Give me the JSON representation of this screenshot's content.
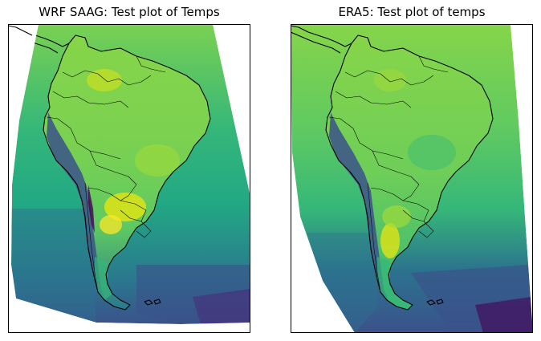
{
  "panels": [
    {
      "title": "WRF SAAG: Test plot of Temps",
      "colormap": "viridis",
      "colors": {
        "warm": "#d8e219",
        "mid_high": "#7ad151",
        "mid": "#22a884",
        "mid_low": "#2a788e",
        "cool": "#414487",
        "cold": "#440154"
      }
    },
    {
      "title": "ERA5: Test plot of temps",
      "colormap": "viridis",
      "colors": {
        "warm": "#c9e020",
        "mid_high": "#86d549",
        "mid": "#35b779",
        "mid_low": "#2c728e",
        "cool": "#3b528b",
        "cold": "#440154"
      }
    }
  ]
}
